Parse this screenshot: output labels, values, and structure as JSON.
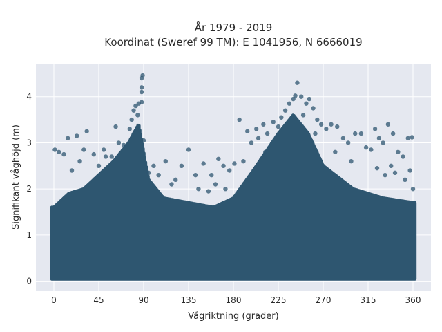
{
  "chart_data": {
    "type": "scatter",
    "title_lines": [
      "År 1979 - 2019",
      "Koordinat (Sweref 99 TM): E 1041956, N 6666019"
    ],
    "xlabel": "Vågriktning (grader)",
    "ylabel": "Signifikant våghöjd (m)",
    "xlim": [
      -18,
      378
    ],
    "ylim": [
      -0.2,
      4.7
    ],
    "xticks": [
      0,
      45,
      90,
      135,
      180,
      225,
      270,
      315,
      360
    ],
    "yticks": [
      0,
      1,
      2,
      3,
      4
    ],
    "grid": true,
    "background": "#e5e8f0",
    "marker_color": "#2e5670",
    "envelope": {
      "direction_deg": [
        0,
        15,
        30,
        45,
        60,
        75,
        85,
        95,
        110,
        135,
        160,
        180,
        200,
        225,
        240,
        255,
        270,
        300,
        330,
        360
      ],
      "upper_height_m": [
        1.6,
        1.9,
        2.0,
        2.3,
        2.6,
        3.0,
        3.4,
        2.2,
        1.8,
        1.7,
        1.6,
        1.8,
        2.4,
        3.2,
        3.6,
        3.2,
        2.5,
        2.0,
        1.8,
        1.7
      ]
    },
    "points": [
      {
        "x": 89,
        "y": 4.46
      },
      {
        "x": 88,
        "y": 4.4
      },
      {
        "x": 88,
        "y": 4.2
      },
      {
        "x": 88,
        "y": 4.1
      },
      {
        "x": 85,
        "y": 3.85
      },
      {
        "x": 82,
        "y": 3.8
      },
      {
        "x": 88,
        "y": 3.88
      },
      {
        "x": 78,
        "y": 3.5
      },
      {
        "x": 80,
        "y": 3.7
      },
      {
        "x": 90,
        "y": 3.05
      },
      {
        "x": 84,
        "y": 3.6
      },
      {
        "x": 76,
        "y": 3.3
      },
      {
        "x": 62,
        "y": 3.35
      },
      {
        "x": 65,
        "y": 3.0
      },
      {
        "x": 33,
        "y": 3.25
      },
      {
        "x": 23,
        "y": 3.15
      },
      {
        "x": 14,
        "y": 3.1
      },
      {
        "x": 1,
        "y": 2.85
      },
      {
        "x": 5,
        "y": 2.8
      },
      {
        "x": 10,
        "y": 2.75
      },
      {
        "x": 30,
        "y": 2.85
      },
      {
        "x": 40,
        "y": 2.75
      },
      {
        "x": 50,
        "y": 2.85
      },
      {
        "x": 58,
        "y": 2.7
      },
      {
        "x": 100,
        "y": 2.5
      },
      {
        "x": 112,
        "y": 2.6
      },
      {
        "x": 122,
        "y": 2.2
      },
      {
        "x": 128,
        "y": 2.5
      },
      {
        "x": 135,
        "y": 2.85
      },
      {
        "x": 142,
        "y": 2.3
      },
      {
        "x": 150,
        "y": 2.55
      },
      {
        "x": 158,
        "y": 2.3
      },
      {
        "x": 165,
        "y": 2.65
      },
      {
        "x": 170,
        "y": 2.5
      },
      {
        "x": 176,
        "y": 2.4
      },
      {
        "x": 181,
        "y": 2.55
      },
      {
        "x": 186,
        "y": 3.5
      },
      {
        "x": 194,
        "y": 3.25
      },
      {
        "x": 198,
        "y": 3.0
      },
      {
        "x": 203,
        "y": 3.3
      },
      {
        "x": 205,
        "y": 3.1
      },
      {
        "x": 210,
        "y": 3.4
      },
      {
        "x": 214,
        "y": 3.2
      },
      {
        "x": 220,
        "y": 3.45
      },
      {
        "x": 228,
        "y": 3.55
      },
      {
        "x": 232,
        "y": 3.7
      },
      {
        "x": 236,
        "y": 3.85
      },
      {
        "x": 240,
        "y": 3.95
      },
      {
        "x": 242,
        "y": 4.02
      },
      {
        "x": 244,
        "y": 4.3
      },
      {
        "x": 248,
        "y": 4.0
      },
      {
        "x": 253,
        "y": 3.85
      },
      {
        "x": 256,
        "y": 3.95
      },
      {
        "x": 260,
        "y": 3.75
      },
      {
        "x": 264,
        "y": 3.5
      },
      {
        "x": 268,
        "y": 3.4
      },
      {
        "x": 273,
        "y": 3.3
      },
      {
        "x": 278,
        "y": 3.4
      },
      {
        "x": 284,
        "y": 3.35
      },
      {
        "x": 290,
        "y": 3.1
      },
      {
        "x": 295,
        "y": 3.0
      },
      {
        "x": 302,
        "y": 3.2
      },
      {
        "x": 308,
        "y": 3.2
      },
      {
        "x": 313,
        "y": 2.9
      },
      {
        "x": 318,
        "y": 2.85
      },
      {
        "x": 322,
        "y": 3.3
      },
      {
        "x": 326,
        "y": 3.1
      },
      {
        "x": 330,
        "y": 3.0
      },
      {
        "x": 335,
        "y": 3.4
      },
      {
        "x": 340,
        "y": 3.2
      },
      {
        "x": 345,
        "y": 2.8
      },
      {
        "x": 350,
        "y": 2.7
      },
      {
        "x": 355,
        "y": 3.1
      },
      {
        "x": 359,
        "y": 3.12
      },
      {
        "x": 357,
        "y": 2.4
      },
      {
        "x": 352,
        "y": 2.2
      },
      {
        "x": 342,
        "y": 2.35
      },
      {
        "x": 332,
        "y": 2.3
      },
      {
        "x": 324,
        "y": 2.45
      },
      {
        "x": 18,
        "y": 2.4
      },
      {
        "x": 26,
        "y": 2.6
      },
      {
        "x": 45,
        "y": 2.5
      },
      {
        "x": 52,
        "y": 2.7
      },
      {
        "x": 70,
        "y": 2.95
      },
      {
        "x": 95,
        "y": 2.35
      },
      {
        "x": 105,
        "y": 2.3
      },
      {
        "x": 118,
        "y": 2.1
      },
      {
        "x": 145,
        "y": 2.0
      },
      {
        "x": 155,
        "y": 1.95
      },
      {
        "x": 162,
        "y": 2.1
      },
      {
        "x": 172,
        "y": 2.0
      },
      {
        "x": 190,
        "y": 2.6
      },
      {
        "x": 212,
        "y": 2.8
      },
      {
        "x": 225,
        "y": 3.35
      },
      {
        "x": 250,
        "y": 3.6
      },
      {
        "x": 262,
        "y": 3.2
      },
      {
        "x": 282,
        "y": 2.8
      },
      {
        "x": 298,
        "y": 2.6
      },
      {
        "x": 338,
        "y": 2.5
      },
      {
        "x": 360,
        "y": 2.0
      }
    ]
  }
}
